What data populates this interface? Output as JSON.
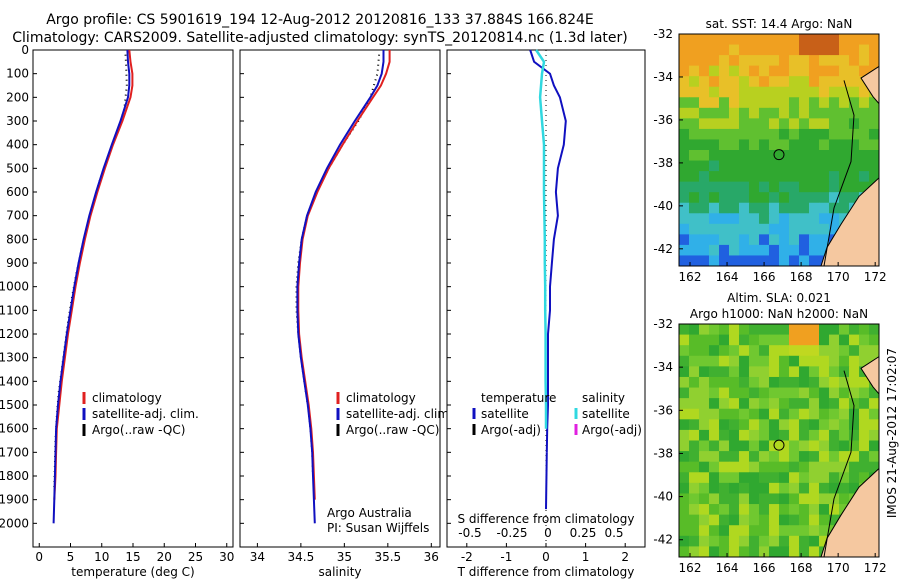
{
  "title_line1": "Argo profile: CS 5901619_194 12-Aug-2012 20120816_133 37.884S 166.824E",
  "title_line2": "Climatology: CARS2009. Satellite-adjusted climatology: synTS_20120814.nc (1.3d later)",
  "side_label": "IMOS 21-Aug-2012 17:02:07",
  "colors": {
    "climatology": "#e02020",
    "satellite": "#1010c0",
    "argo": "#000000",
    "salinity_satellite": "#30d8e0",
    "salinity_argo": "#e020e0"
  },
  "chart_data": [
    {
      "type": "line",
      "id": "temperature",
      "xlabel": "temperature (deg C)",
      "ylabel": "",
      "xlim": [
        -1,
        31
      ],
      "ylim": [
        2100,
        0
      ],
      "xticks": [
        0,
        5,
        10,
        15,
        20,
        25,
        30
      ],
      "yticks": [
        0,
        100,
        200,
        300,
        400,
        500,
        600,
        700,
        800,
        900,
        1000,
        1100,
        1200,
        1300,
        1400,
        1500,
        1600,
        1700,
        1800,
        1900,
        2000
      ],
      "legend": [
        "climatology",
        "satellite-adj. clim.",
        "Argo(..raw -QC)"
      ],
      "series": [
        {
          "name": "climatology",
          "x": [
            14.4,
            14.6,
            14.9,
            14.9,
            14.6,
            13.3,
            11.8,
            10.5,
            9.3,
            8.2,
            7.3,
            6.5,
            5.8,
            5.2,
            4.6,
            4.1,
            3.6,
            3.2,
            2.8,
            2.7,
            2.6,
            2.4
          ],
          "y": [
            0,
            50,
            100,
            150,
            200,
            300,
            400,
            500,
            600,
            700,
            800,
            900,
            1000,
            1100,
            1200,
            1300,
            1400,
            1500,
            1600,
            1700,
            1800,
            1900
          ]
        },
        {
          "name": "satellite-adj. clim.",
          "x": [
            14.1,
            14.2,
            14.4,
            14.4,
            14.2,
            13.0,
            11.6,
            10.3,
            9.1,
            8.0,
            7.1,
            6.3,
            5.6,
            5.0,
            4.4,
            3.9,
            3.4,
            3.0,
            2.7,
            2.6,
            2.5,
            2.4,
            2.3
          ],
          "y": [
            0,
            50,
            100,
            150,
            200,
            300,
            400,
            500,
            600,
            700,
            800,
            900,
            1000,
            1100,
            1200,
            1300,
            1400,
            1500,
            1600,
            1700,
            1800,
            1900,
            2000
          ]
        },
        {
          "name": "Argo(..raw -QC)",
          "x": [
            13.8,
            13.9,
            14.0,
            13.6,
            12.4,
            11.0,
            9.7,
            8.6,
            7.6,
            6.7,
            5.9,
            5.2,
            4.6,
            4.1,
            3.6,
            3.1,
            2.8,
            2.6,
            2.5,
            2.4
          ],
          "y": [
            20,
            60,
            150,
            250,
            350,
            450,
            550,
            650,
            750,
            850,
            950,
            1050,
            1150,
            1250,
            1350,
            1450,
            1550,
            1650,
            1750,
            1850
          ]
        }
      ]
    },
    {
      "type": "line",
      "id": "salinity",
      "xlabel": "salinity",
      "xlim": [
        33.8,
        36.1
      ],
      "ylim": [
        2100,
        0
      ],
      "xticks": [
        34,
        34.5,
        35,
        35.5,
        36
      ],
      "legend": [
        "climatology",
        "satellite-adj. clim.",
        "Argo(..raw -QC)"
      ],
      "annotation": [
        "Argo Australia",
        "PI: Susan Wijffels"
      ],
      "series": [
        {
          "name": "climatology",
          "x": [
            35.52,
            35.52,
            35.48,
            35.42,
            35.33,
            35.15,
            34.98,
            34.82,
            34.69,
            34.58,
            34.52,
            34.49,
            34.47,
            34.47,
            34.48,
            34.51,
            34.55,
            34.59,
            34.62,
            34.64,
            34.65,
            34.66
          ],
          "y": [
            0,
            50,
            100,
            150,
            200,
            300,
            400,
            500,
            600,
            700,
            800,
            900,
            1000,
            1100,
            1200,
            1300,
            1400,
            1500,
            1600,
            1700,
            1800,
            1900
          ]
        },
        {
          "name": "satellite-adj. clim.",
          "x": [
            35.45,
            35.45,
            35.43,
            35.38,
            35.3,
            35.12,
            34.95,
            34.8,
            34.67,
            34.57,
            34.51,
            34.48,
            34.46,
            34.46,
            34.47,
            34.5,
            34.54,
            34.58,
            34.61,
            34.63,
            34.64,
            34.65,
            34.66
          ],
          "y": [
            0,
            50,
            100,
            150,
            200,
            300,
            400,
            500,
            600,
            700,
            800,
            900,
            1000,
            1100,
            1200,
            1300,
            1400,
            1500,
            1600,
            1700,
            1800,
            1900,
            2000
          ]
        },
        {
          "name": "Argo(..raw -QC)",
          "x": [
            35.4,
            35.38,
            35.3,
            35.16,
            34.98,
            34.82,
            34.68,
            34.57,
            34.51,
            34.47,
            34.45,
            34.45,
            34.47,
            34.5,
            34.54,
            34.58,
            34.61,
            34.63,
            34.64
          ],
          "y": [
            20,
            100,
            200,
            300,
            400,
            500,
            600,
            700,
            800,
            900,
            1000,
            1100,
            1200,
            1300,
            1400,
            1500,
            1600,
            1700,
            1800
          ]
        }
      ]
    },
    {
      "type": "line",
      "id": "difference",
      "xlabel": "T difference from climatology",
      "top_xlabel": "S difference from climatology",
      "xlim": [
        -2.5,
        2.5
      ],
      "ylim": [
        2100,
        0
      ],
      "xticks": [
        -2,
        -1,
        0,
        1,
        2
      ],
      "top_xticks": [
        -0.5,
        -0.25,
        0,
        0.25,
        0.5
      ],
      "legend_temperature": [
        "temperature",
        "satellite",
        "Argo(-adj)"
      ],
      "legend_salinity": [
        "salinity",
        "satellite",
        "Argo(-adj)"
      ],
      "series": [
        {
          "name": "satellite",
          "x": [
            -0.4,
            -0.3,
            0.1,
            0.2,
            0.35,
            0.5,
            0.45,
            0.3,
            0.25,
            0.3,
            0.2,
            0.15,
            0.1,
            0.1,
            0.05,
            0.05,
            0.05,
            0.05,
            0.03,
            0.02
          ],
          "y": [
            0,
            50,
            100,
            150,
            200,
            300,
            400,
            500,
            600,
            700,
            800,
            900,
            1000,
            1100,
            1200,
            1300,
            1400,
            1500,
            1600,
            1700
          ]
        },
        {
          "name": "salinity satellite",
          "x": [
            -0.25,
            -0.05,
            -0.1,
            -0.15,
            -0.1,
            -0.05,
            -0.05,
            -0.05,
            -0.04,
            -0.03,
            -0.03,
            -0.02,
            -0.02,
            -0.01,
            -0.01,
            -0.01,
            0,
            0
          ],
          "y": [
            0,
            50,
            100,
            200,
            300,
            400,
            500,
            600,
            700,
            800,
            900,
            1000,
            1100,
            1200,
            1300,
            1400,
            1500,
            1600
          ]
        }
      ]
    }
  ],
  "map_sst": {
    "title": "sat. SST: 14.4  Argo: NaN",
    "yticks": [
      "-32",
      "-34",
      "-36",
      "-38",
      "-40",
      "-42"
    ],
    "xticks": [
      "162",
      "164",
      "166",
      "168",
      "170",
      "172"
    ]
  },
  "map_sla": {
    "title1": "Altim. SLA: 0.021",
    "title2": "Argo h1000: NaN  h2000: NaN",
    "yticks": [
      "-32",
      "-34",
      "-36",
      "-38",
      "-40",
      "-42"
    ],
    "xticks": [
      "162",
      "164",
      "166",
      "168",
      "170",
      "172"
    ]
  }
}
